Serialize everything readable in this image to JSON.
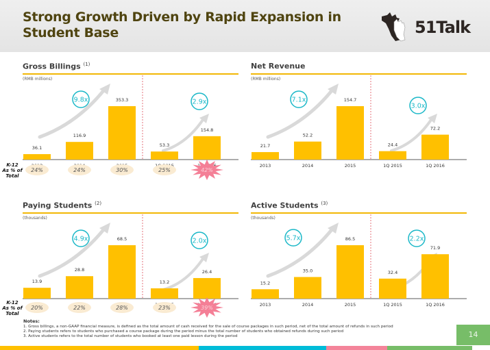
{
  "slide": {
    "title_line1": "Strong Growth Driven by Rapid Expansion in",
    "title_line2": "Student Base",
    "logo_text": "51Talk",
    "page_number": "14",
    "k12_label_line1": "K-12",
    "k12_label_line2": "As % of",
    "k12_label_line3": "Total",
    "notes_title": "Notes:",
    "notes": [
      "1. Gross billings, a non-GAAP financial measure, is defined as the total amount of cash received for the sale of course packages in such period, net of the total amount of refunds in such period",
      "2. Paying students refers to students who purchased a course package during the period minus the total number of students who obtained refunds during such period",
      "3. Active students refers to the total number of students who booked at least one paid lesson during the period"
    ],
    "colors": {
      "bar": "#FFC000",
      "rule": "#F2B705",
      "multiplier": "#1BB8C8",
      "title": "#4F4410",
      "badge": "#FAEBD2",
      "starburst": "#F47F96",
      "divider": "#E0505A",
      "bottom_bar": [
        "#FFC000",
        "#00BCD8",
        "#F4849A",
        "#77BD68"
      ]
    }
  },
  "chart_data": [
    {
      "type": "bar",
      "title": "Gross Billings",
      "footnote": "(1)",
      "unit": "(RMB millions)",
      "categories": [
        "2013",
        "2014",
        "2015",
        "1Q 2015",
        "1Q 2016"
      ],
      "values": [
        36.1,
        116.9,
        353.3,
        53.3,
        154.8
      ],
      "value_labels": [
        "36.1",
        "116.9",
        "353.3",
        "53.3",
        "154.8"
      ],
      "multipliers": [
        "9.8x",
        "2.9x"
      ],
      "k12_pct": [
        "24%",
        "24%",
        "30%",
        "25%",
        "42%"
      ],
      "annual_ylim": [
        0,
        353.3
      ],
      "quarterly_ylim": [
        0,
        353.3
      ]
    },
    {
      "type": "bar",
      "title": "Net Revenue",
      "footnote": "",
      "unit": "(RMB millions)",
      "categories": [
        "2013",
        "2014",
        "2015",
        "1Q 2015",
        "1Q 2016"
      ],
      "values": [
        21.7,
        52.2,
        154.7,
        24.4,
        72.2
      ],
      "value_labels": [
        "21.7",
        "52.2",
        "154.7",
        "24.4",
        "72.2"
      ],
      "multipliers": [
        "7.1x",
        "3.0x"
      ],
      "k12_pct": [],
      "annual_ylim": [
        0,
        154.7
      ],
      "quarterly_ylim": [
        0,
        154.7
      ]
    },
    {
      "type": "bar",
      "title": "Paying Students",
      "footnote": "(2)",
      "unit": "(thousands)",
      "categories": [
        "2013",
        "2014",
        "2015",
        "1Q 2015",
        "1Q 2016"
      ],
      "values": [
        13.9,
        28.8,
        68.5,
        13.2,
        26.4
      ],
      "value_labels": [
        "13.9",
        "28.8",
        "68.5",
        "13.2",
        "26.4"
      ],
      "multipliers": [
        "4.9x",
        "2.0x"
      ],
      "k12_pct": [
        "20%",
        "22%",
        "28%",
        "23%",
        "39%"
      ],
      "annual_ylim": [
        0,
        68.5
      ],
      "quarterly_ylim": [
        0,
        68.5
      ]
    },
    {
      "type": "bar",
      "title": "Active Students",
      "footnote": "(3)",
      "unit": "(thousands)",
      "categories": [
        "2013",
        "2014",
        "2015",
        "1Q 2015",
        "1Q 2016"
      ],
      "values": [
        15.2,
        35.0,
        86.5,
        32.4,
        71.9
      ],
      "value_labels": [
        "15.2",
        "35.0",
        "86.5",
        "32.4",
        "71.9"
      ],
      "multipliers": [
        "5.7x",
        "2.2x"
      ],
      "k12_pct": [],
      "annual_ylim": [
        0,
        86.5
      ],
      "quarterly_ylim": [
        0,
        86.5
      ]
    }
  ]
}
